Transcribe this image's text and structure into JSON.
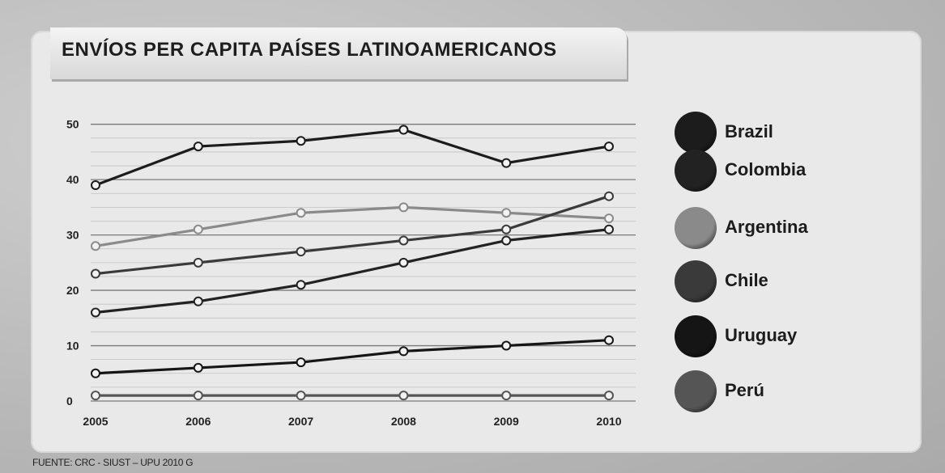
{
  "chart_data": {
    "type": "line",
    "title": "ENVÍOS PER CAPITA PAÍSES LATINOAMERICANOS",
    "source": "FUENTE: CRC - SIUST – UPU 2010 G",
    "x": [
      "2005",
      "2006",
      "2007",
      "2008",
      "2009",
      "2010"
    ],
    "y_ticks": [
      0,
      10,
      20,
      30,
      40,
      50
    ],
    "ylim": [
      0,
      52
    ],
    "grid": true,
    "legend_position": "right",
    "series": [
      {
        "name": "Brazil",
        "color": "#1c1c1c",
        "values": [
          39,
          46,
          47,
          49,
          43,
          46
        ]
      },
      {
        "name": "Colombia",
        "color": "#222222",
        "values": [
          16,
          18,
          21,
          25,
          29,
          31
        ]
      },
      {
        "name": "Argentina",
        "color": "#8a8a8a",
        "values": [
          28,
          31,
          34,
          35,
          34,
          33
        ]
      },
      {
        "name": "Chile",
        "color": "#3a3a3a",
        "values": [
          23,
          25,
          27,
          29,
          31,
          37
        ]
      },
      {
        "name": "Uruguay",
        "color": "#151515",
        "values": [
          5,
          6,
          7,
          9,
          10,
          11
        ]
      },
      {
        "name": "Perú",
        "color": "#555555",
        "values": [
          1,
          1,
          1,
          1,
          1,
          1
        ]
      }
    ]
  }
}
